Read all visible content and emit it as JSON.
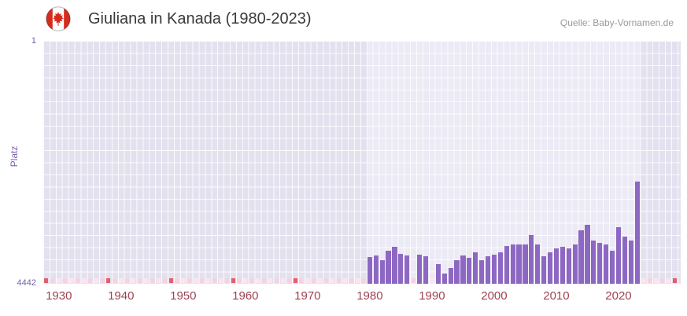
{
  "header": {
    "title": "Giuliana in Kanada (1980-2023)",
    "source": "Quelle: Baby-Vornamen.de",
    "flag_icon": "canada-flag-icon"
  },
  "chart_data": {
    "type": "bar",
    "title": "Giuliana in Kanada (1980-2023)",
    "xlabel": "",
    "ylabel": "Platz",
    "y_axis": {
      "top_label": "1",
      "bottom_label": "4442",
      "min": 1,
      "max": 4442,
      "inverted": true
    },
    "x_axis": {
      "range": [
        1927.5,
        2030
      ],
      "ticks": [
        1930,
        1940,
        1950,
        1960,
        1970,
        1980,
        1990,
        2000,
        2010,
        2020
      ]
    },
    "highlight_band": {
      "start": 1979.5,
      "end": 2023.5
    },
    "legend": "none",
    "grid": true,
    "series": [
      {
        "name": "Platz",
        "x": [
          1980,
          1981,
          1982,
          1983,
          1984,
          1985,
          1986,
          1987,
          1988,
          1989,
          1990,
          1991,
          1992,
          1993,
          1994,
          1995,
          1996,
          1997,
          1998,
          1999,
          2000,
          2001,
          2002,
          2003,
          2004,
          2005,
          2006,
          2007,
          2008,
          2009,
          2010,
          2011,
          2012,
          2013,
          2014,
          2015,
          2016,
          2017,
          2018,
          2019,
          2020,
          2021,
          2022,
          2023
        ],
        "values": [
          3960,
          3930,
          4010,
          3840,
          3770,
          3900,
          3930,
          null,
          3910,
          3940,
          null,
          4080,
          4250,
          4150,
          4010,
          3930,
          3970,
          3870,
          4010,
          3940,
          3910,
          3870,
          3750,
          3720,
          3720,
          3720,
          3550,
          3720,
          3940,
          3870,
          3800,
          3770,
          3800,
          3720,
          3460,
          3360,
          3650,
          3700,
          3720,
          3840,
          3410,
          3580,
          3650,
          2570
        ]
      }
    ],
    "no_data_strip": {
      "start_year": 1928,
      "end_year": 2029,
      "red_years": [
        1928,
        1938,
        1948,
        1958,
        1968,
        2029
      ]
    }
  },
  "colors": {
    "bar": "#8d68c3",
    "plot_bg": "#e4e1ef",
    "band_bg": "#eceaf5",
    "strip_pink_a": "#f5d3e1",
    "strip_pink_b": "#fbe6ef",
    "strip_red": "#e0606e",
    "x_tick_text": "#9e4253",
    "y_tick_text": "#6f5fa8",
    "title_text": "#3a3a3a",
    "source_text": "#9a9a9a",
    "flag_red": "#d52b1e"
  }
}
